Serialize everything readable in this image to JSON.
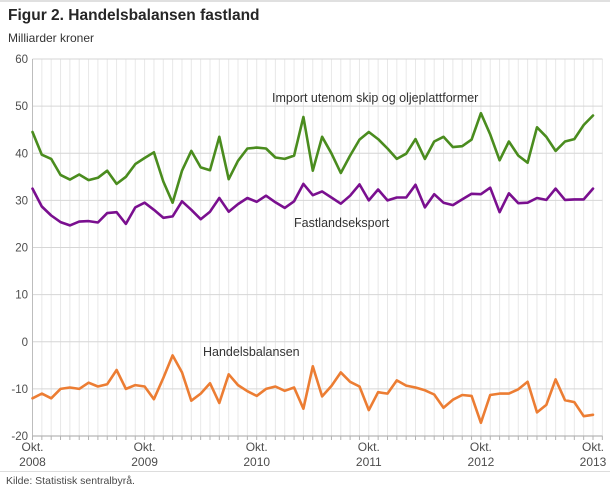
{
  "title": "Figur 2. Handelsbalansen fastland",
  "unit_label": "Milliarder kroner",
  "source": "Kilde: Statistisk sentralbyrå.",
  "chart_data": {
    "type": "line",
    "x_start": "2008-10",
    "x_end": "2013-10",
    "x_frequency": "monthly",
    "n_points": 61,
    "ylim": [
      -20,
      60
    ],
    "y_ticks": [
      60,
      50,
      40,
      30,
      20,
      10,
      0,
      -10,
      -20
    ],
    "grid": "both",
    "legend_position": "inline-annotations",
    "x_tick_labels": [
      {
        "month": "Okt.",
        "year": "2008",
        "month_index": 0
      },
      {
        "month": "Okt.",
        "year": "2009",
        "month_index": 12
      },
      {
        "month": "Okt.",
        "year": "2010",
        "month_index": 24
      },
      {
        "month": "Okt.",
        "year": "2011",
        "month_index": 36
      },
      {
        "month": "Okt.",
        "year": "2012",
        "month_index": 48
      },
      {
        "month": "Okt.",
        "year": "2013",
        "month_index": 60
      }
    ],
    "series": [
      {
        "name": "Import utenom skip og oljeplattformer",
        "color": "#4A8C1E",
        "values": [
          44.5,
          39.7,
          38.8,
          35.4,
          34.4,
          35.5,
          34.3,
          34.8,
          36.3,
          33.5,
          35.0,
          37.7,
          39.0,
          40.2,
          34.0,
          29.5,
          36.3,
          40.5,
          37.0,
          36.4,
          43.5,
          34.5,
          38.4,
          41.0,
          41.2,
          41.0,
          39.1,
          38.8,
          39.5,
          47.7,
          36.3,
          43.5,
          40.0,
          35.8,
          39.5,
          42.9,
          44.5,
          43.0,
          41.0,
          38.8,
          39.9,
          43.0,
          38.8,
          42.5,
          43.5,
          41.3,
          41.5,
          42.9,
          48.5,
          44.0,
          38.5,
          42.5,
          39.5,
          38.0,
          45.5,
          43.5,
          40.5,
          42.5,
          43.0,
          46.0,
          48.0
        ]
      },
      {
        "name": "Fastlandseksport",
        "color": "#7A0F8F",
        "values": [
          32.5,
          28.7,
          26.8,
          25.4,
          24.7,
          25.5,
          25.6,
          25.3,
          27.3,
          27.5,
          25.0,
          28.5,
          29.5,
          28.0,
          26.3,
          26.6,
          29.8,
          28.0,
          26.0,
          27.6,
          30.5,
          27.6,
          29.2,
          30.5,
          29.7,
          31.0,
          29.6,
          28.4,
          29.8,
          33.5,
          31.1,
          31.9,
          30.6,
          29.3,
          31.0,
          33.4,
          30.0,
          32.3,
          30.0,
          30.6,
          30.6,
          33.3,
          28.5,
          31.3,
          29.5,
          29.0,
          30.2,
          31.4,
          31.3,
          32.7,
          27.5,
          31.5,
          29.4,
          29.5,
          30.5,
          30.1,
          32.5,
          30.1,
          30.2,
          30.2,
          32.5
        ]
      },
      {
        "name": "Handelsbalansen",
        "color": "#EC7D33",
        "values": [
          -12.0,
          -11.0,
          -12.0,
          -10.0,
          -9.7,
          -10.0,
          -8.7,
          -9.5,
          -9.0,
          -6.0,
          -10.0,
          -9.2,
          -9.5,
          -12.2,
          -7.7,
          -2.9,
          -6.5,
          -12.5,
          -11.0,
          -8.8,
          -13.0,
          -6.9,
          -9.2,
          -10.5,
          -11.5,
          -10.0,
          -9.5,
          -10.4,
          -9.7,
          -14.2,
          -5.2,
          -11.6,
          -9.4,
          -6.5,
          -8.5,
          -9.5,
          -14.5,
          -10.7,
          -11.0,
          -8.2,
          -9.3,
          -9.7,
          -10.3,
          -11.2,
          -14.0,
          -12.3,
          -11.3,
          -11.5,
          -17.2,
          -11.3,
          -11.0,
          -11.0,
          -10.1,
          -8.5,
          -15.0,
          -13.4,
          -8.0,
          -12.4,
          -12.8,
          -15.8,
          -15.5
        ]
      }
    ]
  }
}
